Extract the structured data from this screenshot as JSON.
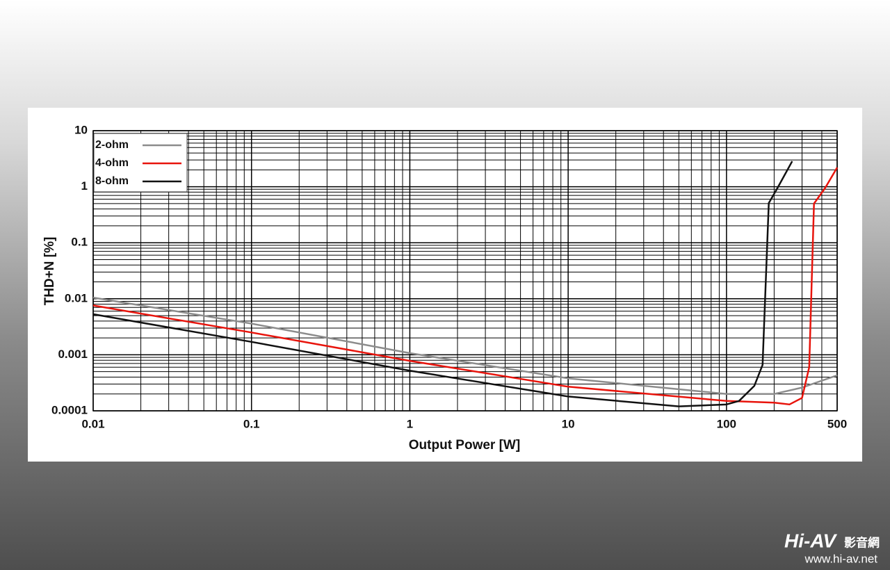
{
  "chart_data": {
    "type": "line",
    "xlabel": "Output Power [W]",
    "ylabel": "THD+N [%]",
    "xscale": "log",
    "yscale": "log",
    "grid": true,
    "minor_grid": true,
    "legend": "upper left",
    "xlim": [
      0.01,
      500
    ],
    "ylim": [
      0.0001,
      10
    ],
    "xticks": [
      0.01,
      0.1,
      1,
      10,
      100,
      500
    ],
    "yticks": [
      0.0001,
      0.001,
      0.01,
      0.1,
      1,
      10
    ],
    "series": [
      {
        "name": "2-ohm",
        "color": "#8c8c8c",
        "x": [
          0.01,
          0.1,
          1,
          10,
          100,
          200,
          300,
          500
        ],
        "values": [
          0.0105,
          0.0036,
          0.00107,
          0.00038,
          0.0002,
          0.0002,
          0.00026,
          0.00043
        ]
      },
      {
        "name": "4-ohm",
        "color": "#e8140c",
        "x": [
          0.01,
          0.1,
          1,
          10,
          100,
          200,
          250,
          300,
          333,
          357,
          420,
          500
        ],
        "values": [
          0.0076,
          0.0025,
          0.00078,
          0.00027,
          0.00015,
          0.00014,
          0.00013,
          0.00017,
          0.0006,
          0.5,
          0.95,
          2.2
        ]
      },
      {
        "name": "8-ohm",
        "color": "#111111",
        "x": [
          0.01,
          0.1,
          1,
          10,
          50,
          100,
          120,
          150,
          169,
          185,
          210,
          260
        ],
        "values": [
          0.0053,
          0.0017,
          0.00052,
          0.00018,
          0.00012,
          0.00013,
          0.00015,
          0.00028,
          0.00066,
          0.51,
          0.95,
          2.85
        ]
      }
    ]
  },
  "watermark": {
    "brand": "Hi-AV",
    "brand_cn": "影音網",
    "url": "www.hi-av.net"
  }
}
